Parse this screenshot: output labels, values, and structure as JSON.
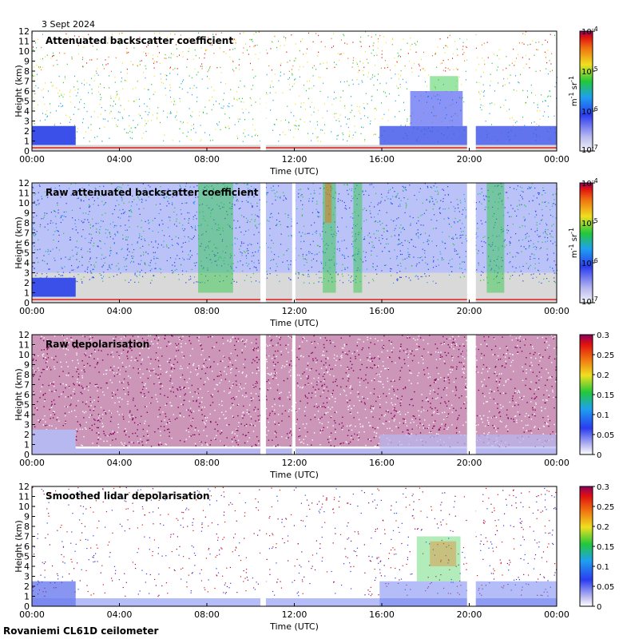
{
  "date_label": "3 Sept 2024",
  "footer_label": "Rovaniemi CL61D ceilometer",
  "colors": {
    "background": "#ffffff",
    "no_data": "#ffffff",
    "low_signal": "#d9d9d9",
    "blue": "#2a3cf0",
    "green": "#22c83a",
    "yellow": "#f0e020",
    "red": "#e01010",
    "purple": "#8b0060"
  },
  "chart_data": [
    {
      "type": "heatmap",
      "title": "Attenuated backscatter coefficient",
      "xlabel": "Time (UTC)",
      "ylabel": "Height (km)",
      "xlim": [
        0,
        24
      ],
      "ylim": [
        0,
        12
      ],
      "x_ticks": [
        "00:00",
        "04:00",
        "08:00",
        "12:00",
        "16:00",
        "20:00",
        "00:00"
      ],
      "y_ticks": [
        "0",
        "1",
        "2",
        "3",
        "4",
        "5",
        "6",
        "7",
        "8",
        "9",
        "10",
        "11",
        "12"
      ],
      "no_data_hours": [
        [
          10.45,
          10.7
        ],
        [
          19.9,
          20.3
        ]
      ],
      "colorbar": {
        "scale": "log",
        "min": "10-7",
        "max": "10-4",
        "ticks": [
          {
            "base": "10",
            "exp": "-4"
          },
          {
            "base": "10",
            "exp": "-5"
          },
          {
            "base": "10",
            "exp": "-6"
          },
          {
            "base": "10",
            "exp": "-7"
          }
        ],
        "label_parts": [
          "m",
          "-1",
          " sr",
          "-1"
        ]
      }
    },
    {
      "type": "heatmap",
      "title": "Raw attenuated backscatter coefficient",
      "xlabel": "Time (UTC)",
      "ylabel": "Height (km)",
      "xlim": [
        0,
        24
      ],
      "ylim": [
        0,
        12
      ],
      "x_ticks": [
        "00:00",
        "04:00",
        "08:00",
        "12:00",
        "16:00",
        "20:00",
        "00:00"
      ],
      "y_ticks": [
        "0",
        "1",
        "2",
        "3",
        "4",
        "5",
        "6",
        "7",
        "8",
        "9",
        "10",
        "11",
        "12"
      ],
      "no_data_hours": [
        [
          10.45,
          10.7
        ],
        [
          11.9,
          12.05
        ],
        [
          19.9,
          20.3
        ]
      ],
      "colorbar": {
        "scale": "log",
        "min": "10-7",
        "max": "10-4",
        "ticks": [
          {
            "base": "10",
            "exp": "-4"
          },
          {
            "base": "10",
            "exp": "-5"
          },
          {
            "base": "10",
            "exp": "-6"
          },
          {
            "base": "10",
            "exp": "-7"
          }
        ],
        "label_parts": [
          "m",
          "-1",
          " sr",
          "-1"
        ]
      }
    },
    {
      "type": "heatmap",
      "title": "Raw depolarisation",
      "xlabel": "Time (UTC)",
      "ylabel": "Height (km)",
      "xlim": [
        0,
        24
      ],
      "ylim": [
        0,
        12
      ],
      "x_ticks": [
        "00:00",
        "04:00",
        "08:00",
        "12:00",
        "16:00",
        "20:00",
        "00:00"
      ],
      "y_ticks": [
        "0",
        "1",
        "2",
        "3",
        "4",
        "5",
        "6",
        "7",
        "8",
        "9",
        "10",
        "11",
        "12"
      ],
      "no_data_hours": [
        [
          10.45,
          10.7
        ],
        [
          11.9,
          12.05
        ],
        [
          19.9,
          20.3
        ]
      ],
      "colorbar": {
        "scale": "linear",
        "min": 0,
        "max": 0.3,
        "ticks": [
          "0.3",
          "0.25",
          "0.2",
          "0.15",
          "0.1",
          "0.05",
          "0"
        ]
      }
    },
    {
      "type": "heatmap",
      "title": "Smoothed lidar depolarisation",
      "xlabel": "Time (UTC)",
      "ylabel": "Height (km)",
      "xlim": [
        0,
        24
      ],
      "ylim": [
        0,
        12
      ],
      "x_ticks": [
        "00:00",
        "04:00",
        "08:00",
        "12:00",
        "16:00",
        "20:00",
        "00:00"
      ],
      "y_ticks": [
        "0",
        "1",
        "2",
        "3",
        "4",
        "5",
        "6",
        "7",
        "8",
        "9",
        "10",
        "11",
        "12"
      ],
      "no_data_hours": [
        [
          10.45,
          10.7
        ],
        [
          19.9,
          20.3
        ]
      ],
      "colorbar": {
        "scale": "linear",
        "min": 0,
        "max": 0.3,
        "ticks": [
          "0.3",
          "0.25",
          "0.2",
          "0.15",
          "0.1",
          "0.05",
          "0"
        ]
      }
    }
  ]
}
